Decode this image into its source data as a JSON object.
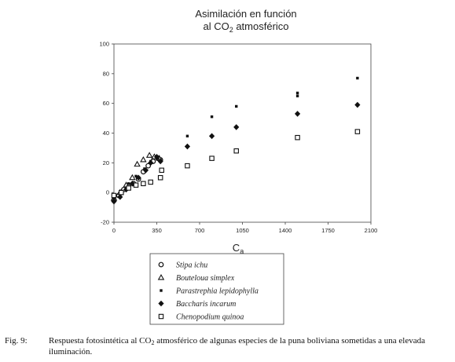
{
  "chart_data": {
    "type": "scatter",
    "title_prefix": "Asimilación en función",
    "title_line2_pre": "al CO",
    "title_line2_sub": "2",
    "title_line2_post": " atmosférico",
    "xlabel_main": "C",
    "xlabel_sub": "a",
    "xlim": [
      0,
      2100
    ],
    "ylim": [
      -20,
      100
    ],
    "xticks": [
      "0",
      "350",
      "700",
      "1050",
      "1400",
      "1750",
      "2100"
    ],
    "xtick_values": [
      0,
      350,
      700,
      1050,
      1400,
      1750,
      2100
    ],
    "yticks": [
      "-20",
      "0",
      "20",
      "40",
      "60",
      "80",
      "100"
    ],
    "ytick_values": [
      -20,
      0,
      20,
      40,
      60,
      80,
      100
    ],
    "grid": false,
    "legend_position": "bottom",
    "series": [
      {
        "name": "Stipa ichu",
        "marker": "circle-open",
        "points": [
          [
            0,
            -5
          ],
          [
            40,
            -2
          ],
          [
            80,
            2
          ],
          [
            120,
            4
          ],
          [
            160,
            6
          ],
          [
            200,
            9
          ],
          [
            240,
            14
          ],
          [
            280,
            18
          ],
          [
            320,
            21
          ],
          [
            360,
            23
          ],
          [
            380,
            22
          ]
        ]
      },
      {
        "name": "Bouteloua simplex",
        "marker": "triangle-open",
        "points": [
          [
            0,
            -4
          ],
          [
            50,
            0
          ],
          [
            100,
            5
          ],
          [
            150,
            10
          ],
          [
            190,
            19
          ],
          [
            240,
            22
          ],
          [
            290,
            25
          ],
          [
            330,
            24
          ],
          [
            370,
            23
          ]
        ]
      },
      {
        "name": "Parastrephia lepidophylla",
        "marker": "square-small-filled",
        "points": [
          [
            0,
            -4
          ],
          [
            60,
            1
          ],
          [
            120,
            6
          ],
          [
            180,
            11
          ],
          [
            250,
            16
          ],
          [
            300,
            21
          ],
          [
            360,
            23
          ],
          [
            600,
            38
          ],
          [
            800,
            51
          ],
          [
            1000,
            58
          ],
          [
            1500,
            65
          ],
          [
            1500,
            67
          ],
          [
            1990,
            77
          ]
        ]
      },
      {
        "name": "Baccharis incarum",
        "marker": "diamond-filled",
        "points": [
          [
            0,
            -6
          ],
          [
            50,
            -3
          ],
          [
            100,
            2
          ],
          [
            150,
            6
          ],
          [
            200,
            10
          ],
          [
            260,
            15
          ],
          [
            300,
            20
          ],
          [
            350,
            24
          ],
          [
            380,
            21
          ],
          [
            600,
            31
          ],
          [
            800,
            38
          ],
          [
            1000,
            44
          ],
          [
            1500,
            53
          ],
          [
            1990,
            59
          ]
        ]
      },
      {
        "name": "Chenopodium quinoa",
        "marker": "square-open",
        "points": [
          [
            0,
            -2
          ],
          [
            60,
            0
          ],
          [
            120,
            3
          ],
          [
            180,
            5
          ],
          [
            240,
            6
          ],
          [
            300,
            7
          ],
          [
            380,
            10
          ],
          [
            390,
            15
          ],
          [
            600,
            18
          ],
          [
            800,
            23
          ],
          [
            1000,
            28
          ],
          [
            1500,
            37
          ],
          [
            1990,
            41
          ]
        ]
      }
    ]
  },
  "caption": {
    "label": "Fig. 9:",
    "text_pre": "Respuesta fotosintética al CO",
    "text_sub": "2",
    "text_post": " atmosférico de algunas especies de la puna boliviana sometidas a una elevada iluminación."
  }
}
